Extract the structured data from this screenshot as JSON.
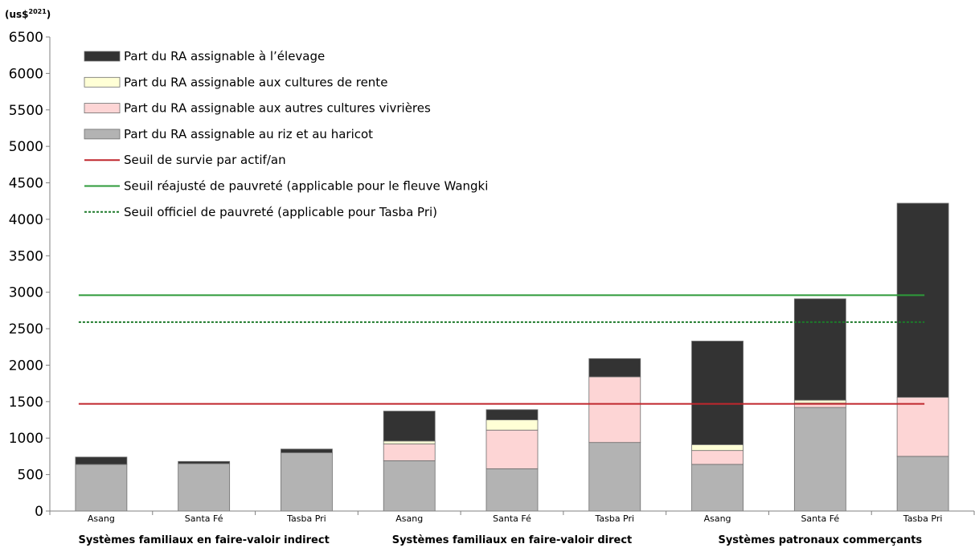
{
  "chart_data": {
    "type": "bar",
    "stacked": true,
    "y_unit": "(us$2021)",
    "y_unit_main": "(us$",
    "y_unit_sup": "2021",
    "y_unit_close": ")",
    "ylim": [
      0,
      6500
    ],
    "yticks": [
      0,
      500,
      1000,
      1500,
      2000,
      2500,
      3000,
      3500,
      4000,
      4500,
      5000,
      5500,
      6000,
      6500
    ],
    "categories": [
      "Asang",
      "Santa Fé",
      "Tasba Pri",
      "Asang",
      "Santa Fé",
      "Tasba Pri",
      "Asang",
      "Santa Fé",
      "Tasba Pri"
    ],
    "groups": [
      {
        "label": "Systèmes familiaux en faire-valoir indirect",
        "categories": [
          0,
          1,
          2
        ]
      },
      {
        "label": "Systèmes familiaux en faire-valoir direct",
        "categories": [
          3,
          4,
          5
        ]
      },
      {
        "label": "Systèmes patronaux commerçants",
        "categories": [
          6,
          7,
          8
        ]
      }
    ],
    "series": [
      {
        "name": "Part du RA assignable au riz et au haricot",
        "color": "#b3b3b3",
        "values": [
          640,
          650,
          800,
          690,
          580,
          940,
          640,
          1420,
          750
        ]
      },
      {
        "name": "Part du RA assignable aux autres cultures vivrières",
        "color": "#fdd5d5",
        "values": [
          0,
          0,
          0,
          230,
          530,
          900,
          190,
          60,
          810
        ]
      },
      {
        "name": "Part du RA assignable aux cultures de rente",
        "color": "#ffffd6",
        "values": [
          0,
          0,
          0,
          40,
          140,
          0,
          80,
          40,
          0
        ]
      },
      {
        "name": "Part du RA assignable à l’élevage",
        "color": "#333333",
        "values": [
          100,
          30,
          50,
          410,
          140,
          250,
          1420,
          1390,
          2660
        ]
      }
    ],
    "reference_lines": [
      {
        "name": "Seuil de survie par actif/an",
        "value": 1470,
        "color": "#c0272d",
        "style": "solid"
      },
      {
        "name": "Seuil réajusté de pauvreté (applicable pour le fleuve Wangki",
        "value": 2960,
        "color": "#2e9a3a",
        "style": "solid"
      },
      {
        "name": "Seuil officiel de pauvreté (applicable pour Tasba Pri)",
        "value": 2590,
        "color": "#1d7a2a",
        "style": "dotted"
      }
    ],
    "legend": {
      "placement": "top-left",
      "order": [
        {
          "kind": "series",
          "index": 3
        },
        {
          "kind": "series",
          "index": 2
        },
        {
          "kind": "series",
          "index": 1
        },
        {
          "kind": "series",
          "index": 0
        },
        {
          "kind": "line",
          "index": 0
        },
        {
          "kind": "line",
          "index": 1
        },
        {
          "kind": "line",
          "index": 2
        }
      ]
    },
    "grid": false
  }
}
